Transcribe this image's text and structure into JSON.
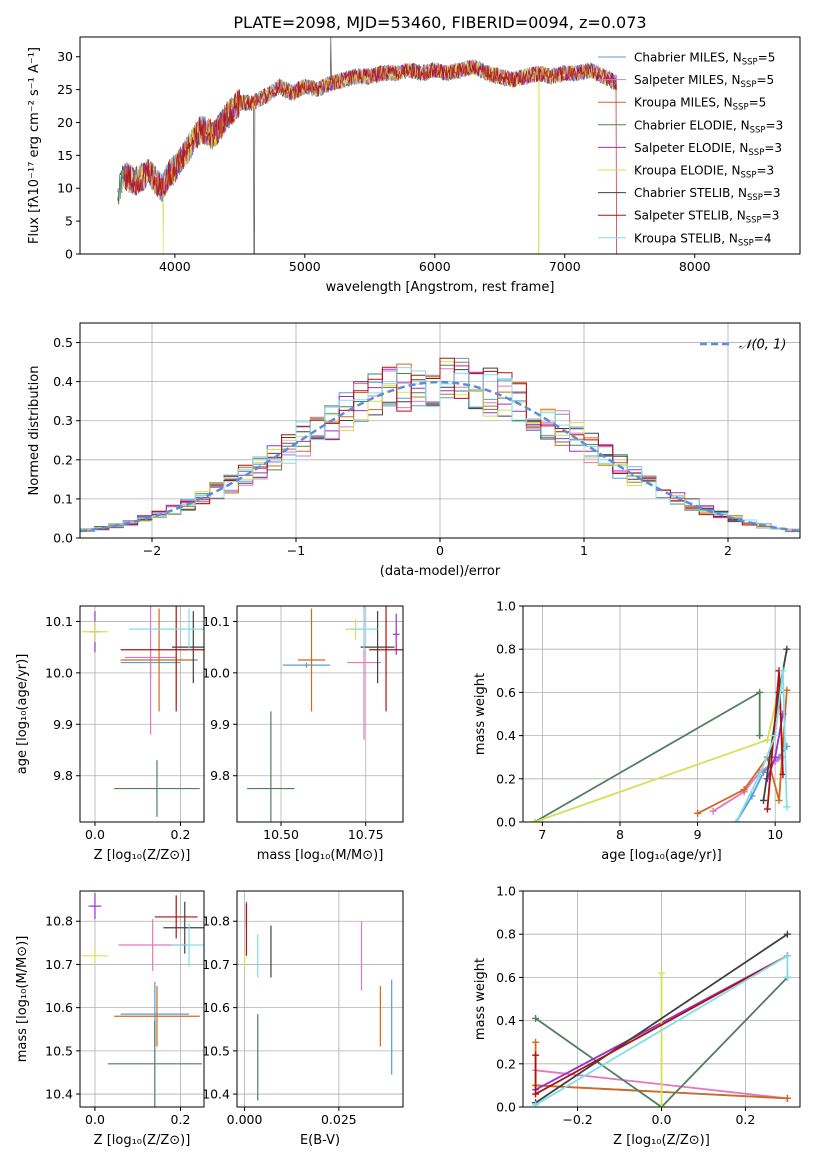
{
  "figure_title": "PLATE=2098, MJD=53460, FIBERID=0094, z=0.073",
  "series": [
    {
      "name": "Chabrier MILES, N_SSP=5",
      "label": "Chabrier MILES, N",
      "sub": "SSP",
      "tail": "=5",
      "color": "#5b9bd5"
    },
    {
      "name": "Salpeter MILES, N_SSP=5",
      "label": "Salpeter MILES, N",
      "sub": "SSP",
      "tail": "=5",
      "color": "#e377c2"
    },
    {
      "name": "Kroupa MILES, N_SSP=5",
      "label": "Kroupa MILES, N",
      "sub": "SSP",
      "tail": "=5",
      "color": "#d2691e"
    },
    {
      "name": "Chabrier ELODIE, N_SSP=3",
      "label": "Chabrier ELODIE, N",
      "sub": "SSP",
      "tail": "=3",
      "color": "#4f7f5f"
    },
    {
      "name": "Salpeter ELODIE, N_SSP=3",
      "label": "Salpeter ELODIE, N",
      "sub": "SSP",
      "tail": "=3",
      "color": "#9932cc"
    },
    {
      "name": "Kroupa ELODIE, N_SSP=3",
      "label": "Kroupa ELODIE, N",
      "sub": "SSP",
      "tail": "=3",
      "color": "#d4e157"
    },
    {
      "name": "Chabrier STELIB, N_SSP=3",
      "label": "Chabrier STELIB, N",
      "sub": "SSP",
      "tail": "=3",
      "color": "#404040"
    },
    {
      "name": "Salpeter STELIB, N_SSP=3",
      "label": "Salpeter STELIB, N",
      "sub": "SSP",
      "tail": "=3",
      "color": "#b01010"
    },
    {
      "name": "Kroupa STELIB, N_SSP=4",
      "label": "Kroupa STELIB, N",
      "sub": "SSP",
      "tail": "=4",
      "color": "#80deea"
    }
  ],
  "chart_data": [
    {
      "id": "spectrum",
      "type": "line",
      "xlabel": "wavelength [Angstrom, rest frame]",
      "ylabel": "Flux [fλ10⁻¹⁷ erg cm⁻² s⁻¹ A⁻¹]",
      "xlim": [
        3270,
        8810
      ],
      "ylim": [
        0,
        33
      ],
      "xticks": [
        4000,
        5000,
        6000,
        7000,
        8000
      ],
      "yticks": [
        0,
        5,
        10,
        15,
        20,
        25,
        30
      ],
      "x": [
        3560,
        3600,
        3700,
        3800,
        3900,
        3950,
        4000,
        4100,
        4200,
        4300,
        4400,
        4500,
        4600,
        4700,
        4800,
        4900,
        5000,
        5100,
        5200,
        5300,
        5400,
        5500,
        5600,
        5700,
        5800,
        5900,
        6000,
        6100,
        6200,
        6300,
        6400,
        6500,
        6600,
        6700,
        6800,
        6900,
        7000,
        7100,
        7200,
        7300,
        7400
      ],
      "values": [
        9,
        12,
        11,
        12.5,
        10,
        12,
        13,
        16,
        19,
        18,
        21,
        23,
        23,
        24,
        25.5,
        24.5,
        25.5,
        25,
        26,
        26.5,
        27,
        27,
        27.5,
        27.5,
        28,
        27.5,
        28,
        27.5,
        28,
        28.5,
        27.5,
        27,
        26.5,
        27,
        27.5,
        27,
        27.5,
        27.5,
        28,
        27,
        26
      ],
      "noise_amplitude": 2.5
    },
    {
      "id": "residual_histogram",
      "type": "bar",
      "xlabel": "(data-model)/error",
      "ylabel": "Normed distribution",
      "xlim": [
        -2.5,
        2.5
      ],
      "ylim": [
        0,
        0.55
      ],
      "xticks": [
        -2,
        -1,
        0,
        1,
        2
      ],
      "yticks": [
        0.0,
        0.1,
        0.2,
        0.3,
        0.4,
        0.5
      ],
      "bin_width": 0.1,
      "reference_curve": {
        "name": "𝒩(0, 1)",
        "mean": 0,
        "sigma": 1
      }
    },
    {
      "id": "age_vs_Z",
      "type": "scatter",
      "xlabel": "Z [log₁₀(Z/Z⊙)]",
      "ylabel": "age  [log₁₀(age/yr)]",
      "xlim": [
        -0.035,
        0.255
      ],
      "ylim": [
        9.71,
        10.13
      ],
      "xticks": [
        0.0,
        0.2
      ],
      "yticks": [
        9.8,
        9.9,
        10.0,
        10.1
      ],
      "points": [
        {
          "s": 0,
          "x": 0.13,
          "y": 10.02,
          "xerr": 0.07,
          "yerr": 0.03
        },
        {
          "s": 1,
          "x": 0.13,
          "y": 10.03,
          "xerr": 0.06,
          "yerr": 0.15
        },
        {
          "s": 2,
          "x": 0.15,
          "y": 10.025,
          "xerr": 0.09,
          "yerr": 0.1
        },
        {
          "s": 3,
          "x": 0.145,
          "y": 9.775,
          "xerr": 0.1,
          "yerr": 0.055
        },
        {
          "s": 4,
          "x": 0.0,
          "y": 10.08,
          "xerr": 0.01,
          "yerr": 0.04
        },
        {
          "s": 5,
          "x": 0.0,
          "y": 10.08,
          "xerr": 0.03,
          "yerr": 0.02
        },
        {
          "s": 6,
          "x": 0.23,
          "y": 10.05,
          "xerr": 0.05,
          "yerr": 0.07
        },
        {
          "s": 7,
          "x": 0.19,
          "y": 10.045,
          "xerr": 0.13,
          "yerr": 0.12
        },
        {
          "s": 8,
          "x": 0.22,
          "y": 10.085,
          "xerr": 0.14,
          "yerr": 0.04
        }
      ]
    },
    {
      "id": "age_vs_mass",
      "type": "scatter",
      "xlabel": "mass [log₁₀(M/M⊙)]",
      "ylabel": "",
      "xlim": [
        10.37,
        10.86
      ],
      "ylim": [
        9.71,
        10.13
      ],
      "xticks": [
        10.5,
        10.75
      ],
      "yticks": [
        9.8,
        9.9,
        10.0,
        10.1
      ],
      "points": [
        {
          "s": 0,
          "x": 10.575,
          "y": 10.015,
          "xerr": 0.07,
          "yerr": 0.005
        },
        {
          "s": 1,
          "x": 10.745,
          "y": 10.02,
          "xerr": 0.05,
          "yerr": 0.15
        },
        {
          "s": 2,
          "x": 10.59,
          "y": 10.025,
          "xerr": 0.04,
          "yerr": 0.1
        },
        {
          "s": 3,
          "x": 10.47,
          "y": 9.775,
          "xerr": 0.07,
          "yerr": 0.15
        },
        {
          "s": 4,
          "x": 10.84,
          "y": 10.075,
          "xerr": 0.01,
          "yerr": 0.04
        },
        {
          "s": 5,
          "x": 10.72,
          "y": 10.085,
          "xerr": 0.03,
          "yerr": 0.02
        },
        {
          "s": 6,
          "x": 10.785,
          "y": 10.05,
          "xerr": 0.05,
          "yerr": 0.07
        },
        {
          "s": 7,
          "x": 10.81,
          "y": 10.045,
          "xerr": 0.05,
          "yerr": 0.12
        },
        {
          "s": 8,
          "x": 10.745,
          "y": 10.085,
          "xerr": 0.04,
          "yerr": 0.04
        }
      ]
    },
    {
      "id": "mass_weight_vs_age",
      "type": "line",
      "xlabel": "age  [log₁₀(age/yr)]",
      "ylabel": "mass weight",
      "xlim": [
        6.75,
        10.32
      ],
      "ylim": [
        0,
        1
      ],
      "xticks": [
        7,
        8,
        9,
        10
      ],
      "yticks": [
        0.0,
        0.2,
        0.4,
        0.6,
        0.8,
        1.0
      ]
    },
    {
      "id": "mass_vs_Z",
      "type": "scatter",
      "xlabel": "Z [log₁₀(Z/Z⊙)]",
      "ylabel": "mass [log₁₀(M/M⊙)]",
      "xlim": [
        -0.035,
        0.255
      ],
      "ylim": [
        10.37,
        10.87
      ],
      "xticks": [
        0.0,
        0.2
      ],
      "yticks": [
        10.4,
        10.5,
        10.6,
        10.7,
        10.8
      ],
      "points": [
        {
          "s": 0,
          "x": 0.14,
          "y": 10.585,
          "xerr": 0.08,
          "yerr": 0.075
        },
        {
          "s": 1,
          "x": 0.135,
          "y": 10.745,
          "xerr": 0.08,
          "yerr": 0.06
        },
        {
          "s": 2,
          "x": 0.145,
          "y": 10.58,
          "xerr": 0.1,
          "yerr": 0.07
        },
        {
          "s": 3,
          "x": 0.14,
          "y": 10.47,
          "xerr": 0.11,
          "yerr": 0.1
        },
        {
          "s": 4,
          "x": 0.0,
          "y": 10.835,
          "xerr": 0.015,
          "yerr": 0.03
        },
        {
          "s": 5,
          "x": 0.0,
          "y": 10.72,
          "xerr": 0.03,
          "yerr": 0.02
        },
        {
          "s": 6,
          "x": 0.21,
          "y": 10.785,
          "xerr": 0.05,
          "yerr": 0.06
        },
        {
          "s": 7,
          "x": 0.19,
          "y": 10.81,
          "xerr": 0.05,
          "yerr": 0.05
        },
        {
          "s": 8,
          "x": 0.22,
          "y": 10.745,
          "xerr": 0.04,
          "yerr": 0.05
        }
      ]
    },
    {
      "id": "mass_vs_EBV",
      "type": "scatter",
      "xlabel": "E(B-V)",
      "ylabel": "",
      "xlim": [
        -0.002,
        0.042
      ],
      "ylim": [
        10.37,
        10.87
      ],
      "xticks": [
        0.0,
        0.025
      ],
      "xticklabels": [
        "0.000",
        "0.025"
      ],
      "yticks": [
        10.4,
        10.5,
        10.6,
        10.7,
        10.8
      ],
      "points": [
        {
          "s": 0,
          "x": 0.039,
          "y": 10.555,
          "yerr": 0.11
        },
        {
          "s": 1,
          "x": 0.031,
          "y": 10.72,
          "yerr": 0.08
        },
        {
          "s": 2,
          "x": 0.036,
          "y": 10.58,
          "yerr": 0.07
        },
        {
          "s": 3,
          "x": 0.0035,
          "y": 10.485,
          "yerr": 0.1
        },
        {
          "s": 4,
          "x": 0.0005,
          "y": 10.815,
          "yerr": 0.03
        },
        {
          "s": 5,
          "x": 0.0,
          "y": 10.71,
          "yerr": 0.02
        },
        {
          "s": 6,
          "x": 0.007,
          "y": 10.73,
          "yerr": 0.06
        },
        {
          "s": 7,
          "x": 0.0005,
          "y": 10.78,
          "yerr": 0.06
        },
        {
          "s": 8,
          "x": 0.0035,
          "y": 10.72,
          "yerr": 0.05
        }
      ]
    },
    {
      "id": "mass_weight_vs_Z",
      "type": "line",
      "xlabel": "Z [log₁₀(Z/Z⊙)]",
      "ylabel": "mass weight",
      "xlim": [
        -0.33,
        0.33
      ],
      "ylim": [
        0,
        1
      ],
      "xticks": [
        -0.2,
        0.0,
        0.2
      ],
      "yticks": [
        0.0,
        0.2,
        0.4,
        0.6,
        0.8,
        1.0
      ]
    }
  ],
  "weight_lines_age": [
    {
      "s": 0,
      "pts": [
        [
          9.5,
          0.0
        ],
        [
          9.7,
          0.12
        ],
        [
          9.85,
          0.23
        ],
        [
          10.05,
          0.3
        ],
        [
          10.15,
          0.35
        ]
      ]
    },
    {
      "s": 1,
      "pts": [
        [
          9.2,
          0.05
        ],
        [
          9.6,
          0.14
        ],
        [
          9.8,
          0.23
        ],
        [
          10.0,
          0.28
        ],
        [
          10.1,
          0.3
        ]
      ]
    },
    {
      "s": 2,
      "pts": [
        [
          9.0,
          0.04
        ],
        [
          9.6,
          0.15
        ],
        [
          9.9,
          0.3
        ],
        [
          10.05,
          0.1
        ],
        [
          10.15,
          0.61
        ]
      ]
    },
    {
      "s": 3,
      "pts": [
        [
          6.9,
          0.0
        ],
        [
          9.8,
          0.6
        ],
        [
          9.8,
          0.4
        ]
      ]
    },
    {
      "s": 4,
      "pts": [
        [
          9.9,
          0.2
        ],
        [
          10.0,
          0.3
        ],
        [
          10.1,
          0.5
        ]
      ]
    },
    {
      "s": 5,
      "pts": [
        [
          6.9,
          0.0
        ],
        [
          9.9,
          0.38
        ],
        [
          10.05,
          0.62
        ]
      ]
    },
    {
      "s": 6,
      "pts": [
        [
          9.85,
          0.1
        ],
        [
          10.05,
          0.6
        ],
        [
          10.15,
          0.8
        ]
      ]
    },
    {
      "s": 7,
      "pts": [
        [
          9.9,
          0.06
        ],
        [
          10.05,
          0.7
        ],
        [
          10.1,
          0.22
        ]
      ]
    },
    {
      "s": 8,
      "pts": [
        [
          9.5,
          0.0
        ],
        [
          9.8,
          0.22
        ],
        [
          10.0,
          0.4
        ],
        [
          10.1,
          0.7
        ],
        [
          10.15,
          0.07
        ]
      ]
    }
  ],
  "weight_lines_Z": [
    {
      "s": 0,
      "pts": [
        [
          -0.3,
          0.1
        ],
        [
          0.3,
          0.04
        ]
      ]
    },
    {
      "s": 1,
      "pts": [
        [
          -0.3,
          0.17
        ],
        [
          0.3,
          0.04
        ]
      ]
    },
    {
      "s": 2,
      "pts": [
        [
          -0.3,
          0.3
        ],
        [
          -0.3,
          0.1
        ],
        [
          0.3,
          0.04
        ]
      ]
    },
    {
      "s": 3,
      "pts": [
        [
          -0.3,
          0.41
        ],
        [
          0.0,
          0.0
        ],
        [
          0.3,
          0.6
        ]
      ]
    },
    {
      "s": 4,
      "pts": [
        [
          -0.3,
          0.08
        ],
        [
          0.3,
          0.7
        ]
      ]
    },
    {
      "s": 5,
      "pts": [
        [
          0.0,
          0.62
        ],
        [
          0.0,
          0.0
        ]
      ]
    },
    {
      "s": 6,
      "pts": [
        [
          -0.3,
          0.02
        ],
        [
          0.3,
          0.8
        ]
      ]
    },
    {
      "s": 7,
      "pts": [
        [
          -0.3,
          0.24
        ],
        [
          -0.3,
          0.06
        ],
        [
          0.3,
          0.7
        ]
      ]
    },
    {
      "s": 8,
      "pts": [
        [
          -0.3,
          0.01
        ],
        [
          0.3,
          0.7
        ],
        [
          0.3,
          0.6
        ]
      ]
    }
  ]
}
